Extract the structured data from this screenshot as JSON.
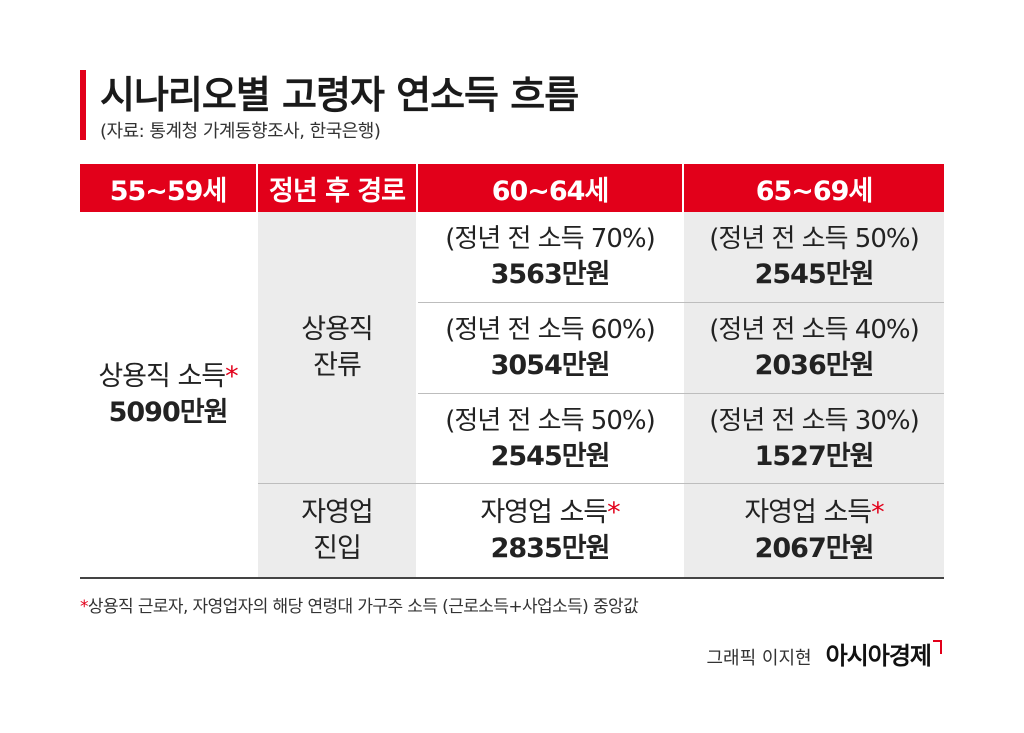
{
  "title": "시나리오별 고령자 연소득 흐름",
  "source": "(자료: 통계청 가계동향조사, 한국은행)",
  "accent_color": "#e2001a",
  "headers": {
    "col1": "55~59세",
    "col2": "정년 후 경로",
    "col3": "60~64세",
    "col4": "65~69세"
  },
  "age55_59": {
    "label": "상용직 소득",
    "star": "*",
    "amount": "5090만원"
  },
  "paths": {
    "stay": {
      "line1": "상용직",
      "line2": "잔류"
    },
    "self": {
      "line1": "자영업",
      "line2": "진입"
    }
  },
  "rows": [
    {
      "c60": {
        "pct": "(정년 전 소득 70%)",
        "amt": "3563만원"
      },
      "c65": {
        "pct": "(정년 전 소득 50%)",
        "amt": "2545만원"
      }
    },
    {
      "c60": {
        "pct": "(정년 전 소득 60%)",
        "amt": "3054만원"
      },
      "c65": {
        "pct": "(정년 전 소득 40%)",
        "amt": "2036만원"
      }
    },
    {
      "c60": {
        "pct": "(정년 전 소득 50%)",
        "amt": "2545만원"
      },
      "c65": {
        "pct": "(정년 전 소득 30%)",
        "amt": "1527만원"
      }
    },
    {
      "c60": {
        "pct": "자영업 소득",
        "star": "*",
        "amt": "2835만원"
      },
      "c65": {
        "pct": "자영업 소득",
        "star": "*",
        "amt": "2067만원"
      }
    }
  ],
  "footnote": {
    "star": "*",
    "text": "상용직 근로자, 자영업자의 해당 연령대 가구주 소득 (근로소득+사업소득) 중앙값"
  },
  "credit": {
    "byline": "그래픽 이지현",
    "brand": "아시아경제"
  }
}
